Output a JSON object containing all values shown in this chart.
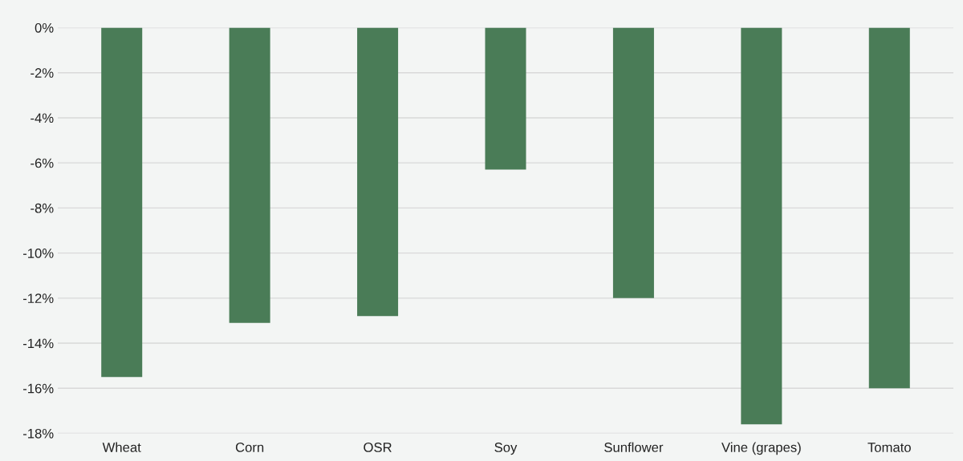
{
  "chart_data": {
    "type": "bar",
    "categories": [
      "Wheat",
      "Corn",
      "OSR",
      "Soy",
      "Sunflower",
      "Vine (grapes)",
      "Tomato"
    ],
    "values": [
      -15.5,
      -13.1,
      -12.8,
      -6.3,
      -12.0,
      -17.6,
      -16.0
    ],
    "color": "#4a7c57",
    "ylim": [
      -18,
      0
    ],
    "yticks": [
      {
        "value": 0,
        "label": "0%"
      },
      {
        "value": -2,
        "label": "-2%"
      },
      {
        "value": -4,
        "label": "-4%"
      },
      {
        "value": -6,
        "label": "-6%"
      },
      {
        "value": -8,
        "label": "-8%"
      },
      {
        "value": -10,
        "label": "-10%"
      },
      {
        "value": -12,
        "label": "-12%"
      },
      {
        "value": -14,
        "label": "-14%"
      },
      {
        "value": -16,
        "label": "-16%"
      },
      {
        "value": -18,
        "label": "-18%"
      }
    ],
    "grid": "y"
  }
}
